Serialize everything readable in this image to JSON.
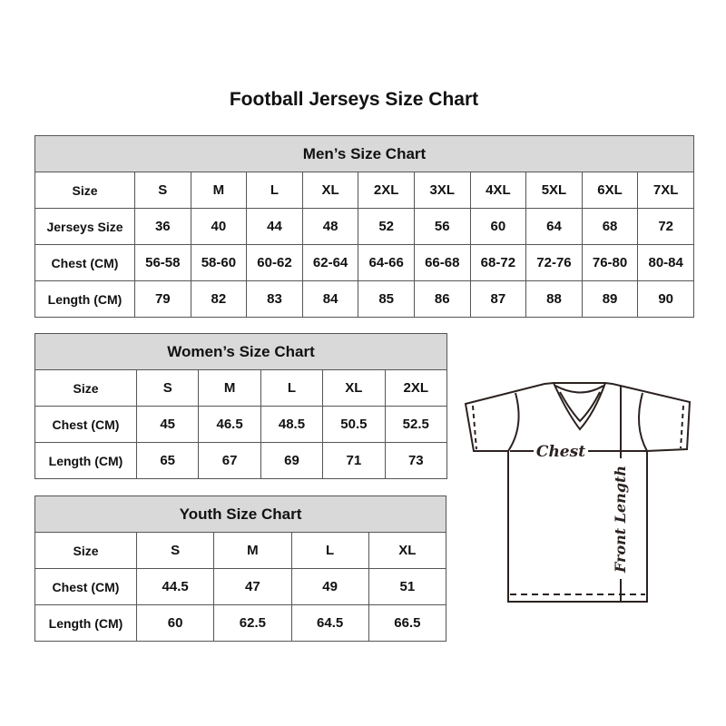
{
  "title": "Football Jerseys Size Chart",
  "tables": [
    {
      "id": "men",
      "heading": "Men’s Size Chart",
      "rows": [
        [
          "Size",
          "S",
          "M",
          "L",
          "XL",
          "2XL",
          "3XL",
          "4XL",
          "5XL",
          "6XL",
          "7XL"
        ],
        [
          "Jerseys Size",
          "36",
          "40",
          "44",
          "48",
          "52",
          "56",
          "60",
          "64",
          "68",
          "72"
        ],
        [
          "Chest (CM)",
          "56-58",
          "58-60",
          "60-62",
          "62-64",
          "64-66",
          "66-68",
          "68-72",
          "72-76",
          "76-80",
          "80-84"
        ],
        [
          "Length (CM)",
          "79",
          "82",
          "83",
          "84",
          "85",
          "86",
          "87",
          "88",
          "89",
          "90"
        ]
      ]
    },
    {
      "id": "women",
      "heading": "Women’s Size Chart",
      "rows": [
        [
          "Size",
          "S",
          "M",
          "L",
          "XL",
          "2XL"
        ],
        [
          "Chest (CM)",
          "45",
          "46.5",
          "48.5",
          "50.5",
          "52.5"
        ],
        [
          "Length (CM)",
          "65",
          "67",
          "69",
          "71",
          "73"
        ]
      ]
    },
    {
      "id": "youth",
      "heading": "Youth Size Chart",
      "rows": [
        [
          "Size",
          "S",
          "M",
          "L",
          "XL"
        ],
        [
          "Chest (CM)",
          "44.5",
          "47",
          "49",
          "51"
        ],
        [
          "Length (CM)",
          "60",
          "62.5",
          "64.5",
          "66.5"
        ]
      ]
    }
  ],
  "diagram": {
    "chest_label": "Chest",
    "length_label": "Front Length"
  },
  "colors": {
    "header_bg": "#d9d9d9",
    "border": "#555555",
    "line": "#2b2220"
  }
}
